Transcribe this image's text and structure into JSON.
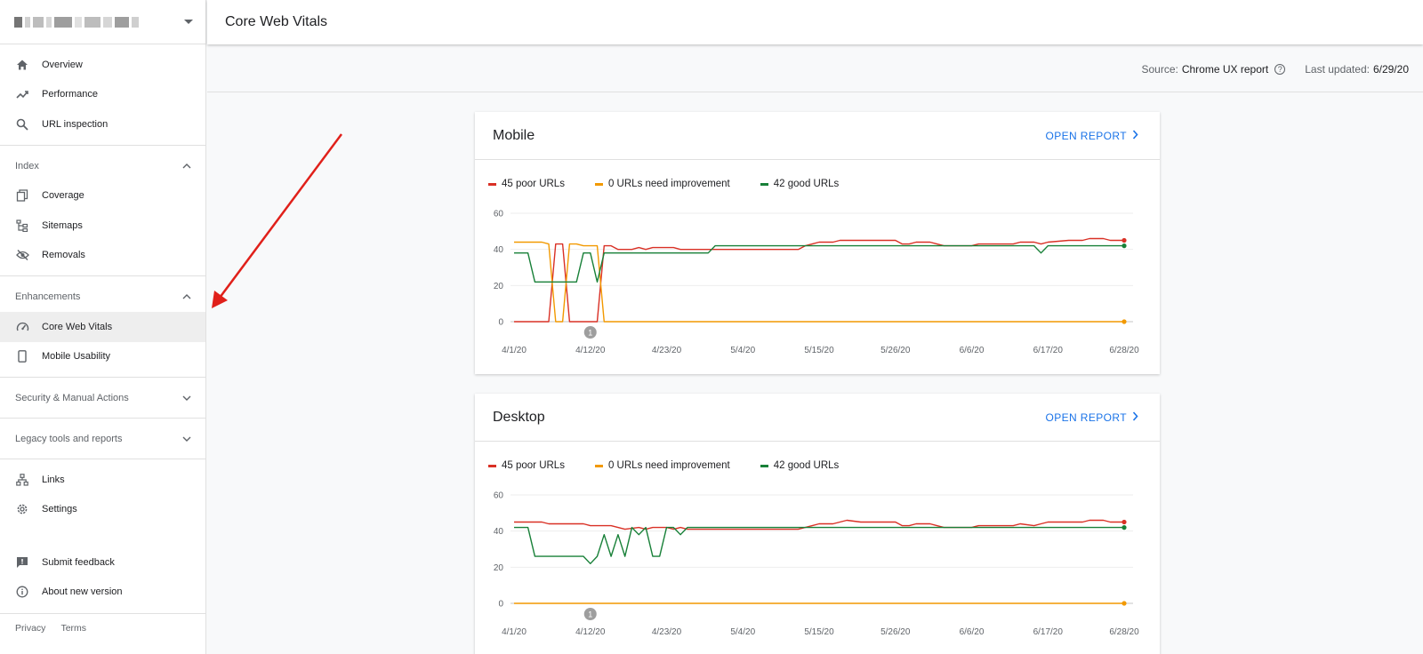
{
  "header": {
    "title": "Core Web Vitals"
  },
  "source_bar": {
    "source_label": "Source:",
    "source_value": "Chrome UX report",
    "help_glyph": "?",
    "updated_label": "Last updated:",
    "updated_value": "6/29/20"
  },
  "sidebar": {
    "top_items": [
      {
        "label": "Overview",
        "icon": "home-icon"
      },
      {
        "label": "Performance",
        "icon": "trending-up-icon"
      },
      {
        "label": "URL inspection",
        "icon": "search-icon"
      }
    ],
    "index": {
      "header": "Index",
      "items": [
        {
          "label": "Coverage",
          "icon": "copy-icon"
        },
        {
          "label": "Sitemaps",
          "icon": "sitemap-icon"
        },
        {
          "label": "Removals",
          "icon": "eye-off-icon"
        }
      ]
    },
    "enhancements": {
      "header": "Enhancements",
      "items": [
        {
          "label": "Core Web Vitals",
          "icon": "speedometer-icon"
        },
        {
          "label": "Mobile Usability",
          "icon": "smartphone-icon"
        }
      ]
    },
    "security_header": "Security & Manual Actions",
    "legacy_header": "Legacy tools and reports",
    "bottom_items": [
      {
        "label": "Links",
        "icon": "links-icon"
      },
      {
        "label": "Settings",
        "icon": "gear-icon"
      }
    ],
    "help_items": [
      {
        "label": "Submit feedback",
        "icon": "feedback-icon"
      },
      {
        "label": "About new version",
        "icon": "info-icon"
      }
    ],
    "footer": {
      "privacy": "Privacy",
      "terms": "Terms"
    }
  },
  "colors": {
    "poor": "#d93025",
    "needs_improvement": "#f29900",
    "good": "#188038",
    "link": "#1a73e8"
  },
  "cards": [
    {
      "title": "Mobile",
      "open_report": "OPEN REPORT",
      "legend": [
        "45 poor URLs",
        "0 URLs need improvement",
        "42 good URLs"
      ],
      "annotation": "1"
    },
    {
      "title": "Desktop",
      "open_report": "OPEN REPORT",
      "legend": [
        "45 poor URLs",
        "0 URLs need improvement",
        "42 good URLs"
      ],
      "annotation": "1"
    }
  ],
  "chart_data": [
    {
      "type": "line",
      "ylim": [
        0,
        60
      ],
      "yticks": [
        0,
        20,
        40,
        60
      ],
      "xticks": [
        "4/1/20",
        "4/12/20",
        "4/23/20",
        "5/4/20",
        "5/15/20",
        "5/26/20",
        "6/6/20",
        "6/17/20",
        "6/28/20"
      ],
      "xtick_days": [
        0,
        11,
        22,
        33,
        44,
        55,
        66,
        77,
        88
      ],
      "annotation_day": 11,
      "series": [
        {
          "name": "45 poor URLs",
          "color": "#d93025",
          "points": [
            [
              0,
              0
            ],
            [
              5,
              0
            ],
            [
              6,
              43
            ],
            [
              7,
              43
            ],
            [
              8,
              0
            ],
            [
              12,
              0
            ],
            [
              13,
              42
            ],
            [
              14,
              42
            ],
            [
              15,
              40
            ],
            [
              16,
              40
            ],
            [
              17,
              40
            ],
            [
              18,
              41
            ],
            [
              19,
              40
            ],
            [
              20,
              41
            ],
            [
              21,
              41
            ],
            [
              22,
              41
            ],
            [
              23,
              41
            ],
            [
              24,
              40
            ],
            [
              25,
              40
            ],
            [
              26,
              40
            ],
            [
              28,
              40
            ],
            [
              30,
              40
            ],
            [
              33,
              40
            ],
            [
              36,
              40
            ],
            [
              38,
              40
            ],
            [
              41,
              40
            ],
            [
              42,
              42
            ],
            [
              43,
              43
            ],
            [
              44,
              44
            ],
            [
              46,
              44
            ],
            [
              47,
              45
            ],
            [
              55,
              45
            ],
            [
              56,
              43
            ],
            [
              57,
              43
            ],
            [
              58,
              44
            ],
            [
              60,
              44
            ],
            [
              61,
              43
            ],
            [
              62,
              42
            ],
            [
              66,
              42
            ],
            [
              67,
              43
            ],
            [
              70,
              43
            ],
            [
              72,
              43
            ],
            [
              73,
              44
            ],
            [
              75,
              44
            ],
            [
              76,
              43
            ],
            [
              77,
              44
            ],
            [
              80,
              45
            ],
            [
              82,
              45
            ],
            [
              83,
              46
            ],
            [
              85,
              46
            ],
            [
              86,
              45
            ],
            [
              88,
              45
            ]
          ]
        },
        {
          "name": "0 URLs need improvement",
          "color": "#f29900",
          "points": [
            [
              0,
              44
            ],
            [
              4,
              44
            ],
            [
              5,
              43
            ],
            [
              6,
              0
            ],
            [
              7,
              0
            ],
            [
              8,
              43
            ],
            [
              9,
              43
            ],
            [
              10,
              42
            ],
            [
              12,
              42
            ],
            [
              13,
              0
            ],
            [
              88,
              0
            ]
          ]
        },
        {
          "name": "42 good URLs",
          "color": "#188038",
          "points": [
            [
              0,
              38
            ],
            [
              2,
              38
            ],
            [
              3,
              22
            ],
            [
              9,
              22
            ],
            [
              10,
              38
            ],
            [
              11,
              38
            ],
            [
              12,
              22
            ],
            [
              13,
              38
            ],
            [
              14,
              38
            ],
            [
              28,
              38
            ],
            [
              29,
              42
            ],
            [
              44,
              42
            ],
            [
              66,
              42
            ],
            [
              75,
              42
            ],
            [
              76,
              38
            ],
            [
              77,
              42
            ],
            [
              88,
              42
            ]
          ]
        }
      ]
    },
    {
      "type": "line",
      "ylim": [
        0,
        60
      ],
      "yticks": [
        0,
        20,
        40,
        60
      ],
      "xticks": [
        "4/1/20",
        "4/12/20",
        "4/23/20",
        "5/4/20",
        "5/15/20",
        "5/26/20",
        "6/6/20",
        "6/17/20",
        "6/28/20"
      ],
      "xtick_days": [
        0,
        11,
        22,
        33,
        44,
        55,
        66,
        77,
        88
      ],
      "annotation_day": 11,
      "series": [
        {
          "name": "45 poor URLs",
          "color": "#d93025",
          "points": [
            [
              0,
              45
            ],
            [
              4,
              45
            ],
            [
              5,
              44
            ],
            [
              10,
              44
            ],
            [
              11,
              43
            ],
            [
              14,
              43
            ],
            [
              15,
              42
            ],
            [
              16,
              41
            ],
            [
              18,
              42
            ],
            [
              19,
              41
            ],
            [
              20,
              42
            ],
            [
              22,
              42
            ],
            [
              23,
              41
            ],
            [
              24,
              42
            ],
            [
              25,
              41
            ],
            [
              26,
              41
            ],
            [
              30,
              41
            ],
            [
              36,
              41
            ],
            [
              41,
              41
            ],
            [
              42,
              42
            ],
            [
              43,
              43
            ],
            [
              44,
              44
            ],
            [
              46,
              44
            ],
            [
              47,
              45
            ],
            [
              48,
              46
            ],
            [
              50,
              45
            ],
            [
              55,
              45
            ],
            [
              56,
              43
            ],
            [
              57,
              43
            ],
            [
              58,
              44
            ],
            [
              60,
              44
            ],
            [
              61,
              43
            ],
            [
              62,
              42
            ],
            [
              66,
              42
            ],
            [
              67,
              43
            ],
            [
              72,
              43
            ],
            [
              73,
              44
            ],
            [
              75,
              43
            ],
            [
              76,
              44
            ],
            [
              77,
              45
            ],
            [
              82,
              45
            ],
            [
              83,
              46
            ],
            [
              85,
              46
            ],
            [
              86,
              45
            ],
            [
              88,
              45
            ]
          ]
        },
        {
          "name": "0 URLs need improvement",
          "color": "#f29900",
          "points": [
            [
              0,
              0
            ],
            [
              88,
              0
            ]
          ]
        },
        {
          "name": "42 good URLs",
          "color": "#188038",
          "points": [
            [
              0,
              42
            ],
            [
              2,
              42
            ],
            [
              3,
              26
            ],
            [
              10,
              26
            ],
            [
              11,
              22
            ],
            [
              12,
              26
            ],
            [
              13,
              38
            ],
            [
              14,
              26
            ],
            [
              15,
              38
            ],
            [
              16,
              26
            ],
            [
              17,
              42
            ],
            [
              18,
              38
            ],
            [
              19,
              42
            ],
            [
              20,
              26
            ],
            [
              21,
              26
            ],
            [
              22,
              42
            ],
            [
              23,
              42
            ],
            [
              24,
              38
            ],
            [
              25,
              42
            ],
            [
              44,
              42
            ],
            [
              66,
              42
            ],
            [
              88,
              42
            ]
          ]
        }
      ]
    }
  ]
}
